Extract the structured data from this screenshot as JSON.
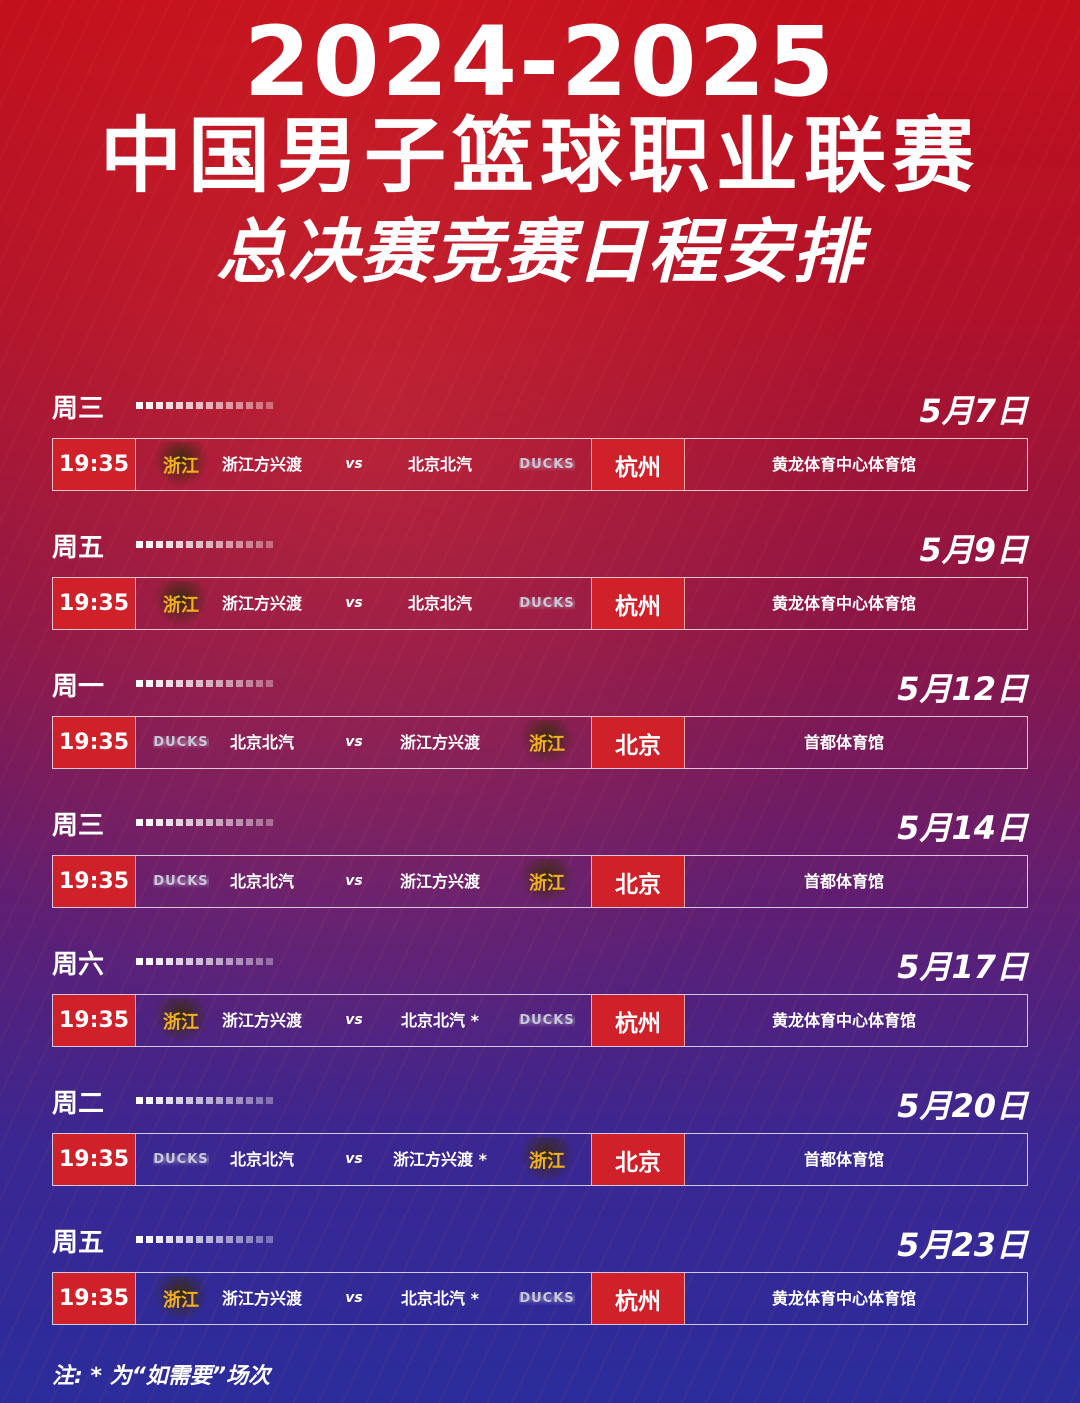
{
  "header": {
    "title_years": "2024-2025",
    "title_league": "中国男子篮球职业联赛",
    "title_sub": "总决赛竞赛日程安排"
  },
  "colors": {
    "accent_red": "#d0202a",
    "bg_top": "#c20f1c",
    "bg_bottom": "#2b2c9c",
    "zhejiang_gold": "#f0b020"
  },
  "logos": {
    "zhejiang": "浙江",
    "beijing": "DUCKS"
  },
  "vs_label": "vs",
  "games": [
    {
      "weekday": "周三",
      "date": "5月7日",
      "time": "19:35",
      "home": "浙江方兴渡",
      "home_logo": "zhejiang",
      "away": "北京北汽",
      "away_logo": "beijing",
      "city": "杭州",
      "venue": "黄龙体育中心体育馆"
    },
    {
      "weekday": "周五",
      "date": "5月9日",
      "time": "19:35",
      "home": "浙江方兴渡",
      "home_logo": "zhejiang",
      "away": "北京北汽",
      "away_logo": "beijing",
      "city": "杭州",
      "venue": "黄龙体育中心体育馆"
    },
    {
      "weekday": "周一",
      "date": "5月12日",
      "time": "19:35",
      "home": "北京北汽",
      "home_logo": "beijing",
      "away": "浙江方兴渡",
      "away_logo": "zhejiang",
      "city": "北京",
      "venue": "首都体育馆"
    },
    {
      "weekday": "周三",
      "date": "5月14日",
      "time": "19:35",
      "home": "北京北汽",
      "home_logo": "beijing",
      "away": "浙江方兴渡",
      "away_logo": "zhejiang",
      "city": "北京",
      "venue": "首都体育馆"
    },
    {
      "weekday": "周六",
      "date": "5月17日",
      "time": "19:35",
      "home": "浙江方兴渡",
      "home_logo": "zhejiang",
      "away": "北京北汽 *",
      "away_logo": "beijing",
      "city": "杭州",
      "venue": "黄龙体育中心体育馆"
    },
    {
      "weekday": "周二",
      "date": "5月20日",
      "time": "19:35",
      "home": "北京北汽",
      "home_logo": "beijing",
      "away": "浙江方兴渡 *",
      "away_logo": "zhejiang",
      "city": "北京",
      "venue": "首都体育馆"
    },
    {
      "weekday": "周五",
      "date": "5月23日",
      "time": "19:35",
      "home": "浙江方兴渡",
      "home_logo": "zhejiang",
      "away": "北京北汽 *",
      "away_logo": "beijing",
      "city": "杭州",
      "venue": "黄龙体育中心体育馆"
    }
  ],
  "footer": {
    "note": "注: * 为“如需要”场次"
  }
}
